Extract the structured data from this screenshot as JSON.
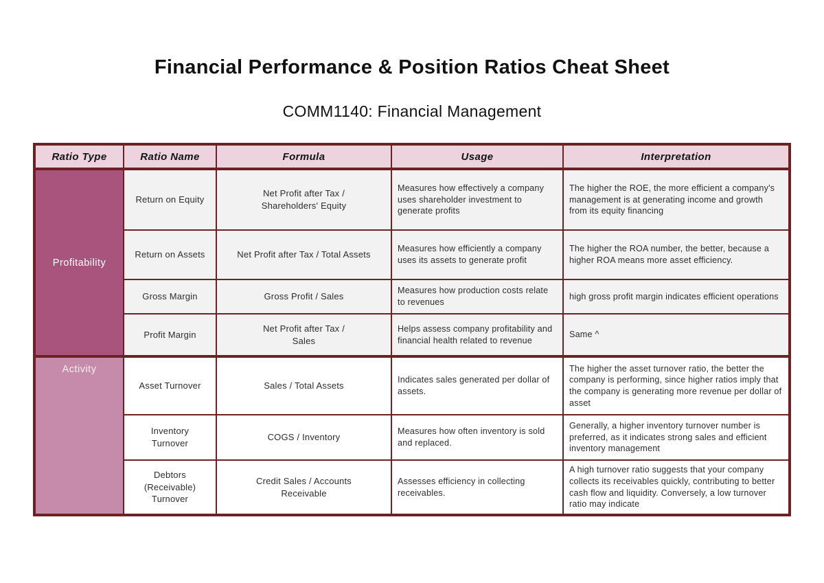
{
  "page": {
    "title": "Financial Performance & Position Ratios Cheat Sheet",
    "subtitle": "COMM1140: Financial Management"
  },
  "table": {
    "columns": [
      "Ratio Type",
      "Ratio Name",
      "Formula",
      "Usage",
      "Interpretation"
    ],
    "groups": [
      {
        "type": "Profitability",
        "rows": [
          {
            "name": "Return on Equity",
            "formula": "Net Profit after Tax /\nShareholders' Equity",
            "usage": "Measures how effectively a company uses shareholder investment to generate profits",
            "interpretation": "The higher the ROE, the more efficient a company's management is at generating income and growth from its equity financing"
          },
          {
            "name": "Return on Assets",
            "formula": "Net Profit after Tax / Total Assets",
            "usage": "Measures how efficiently a company uses its assets to generate profit",
            "interpretation": "The higher the ROA number, the better, because a higher ROA means more asset efficiency."
          },
          {
            "name": "Gross Margin",
            "formula": "Gross Profit / Sales",
            "usage": "Measures how production costs relate to revenues",
            "interpretation": "high gross profit margin indicates efficient operations"
          },
          {
            "name": "Profit Margin",
            "formula": "Net Profit after Tax /\nSales",
            "usage": "Helps assess company profitability and financial health related to revenue",
            "interpretation": "Same ^"
          }
        ]
      },
      {
        "type": "Activity",
        "rows": [
          {
            "name": "Asset Turnover",
            "formula": "Sales / Total Assets",
            "usage": "Indicates sales generated per dollar of assets.",
            "interpretation": "The higher the asset turnover ratio, the better the company is performing, since higher ratios imply that the company is generating more revenue per dollar of asset"
          },
          {
            "name": "Inventory\nTurnover",
            "formula": "COGS / Inventory",
            "usage": "Measures how often inventory is sold and replaced.",
            "interpretation": "Generally, a higher inventory turnover number is preferred, as it indicates strong sales and efficient inventory management"
          },
          {
            "name": "Debtors\n(Receivable)\nTurnover",
            "formula": "Credit Sales / Accounts\nReceivable",
            "usage": "Assesses efficiency in collecting receivables.",
            "interpretation": "A high turnover ratio suggests that your company collects its receivables quickly, contributing to better cash flow and liquidity. Conversely, a low turnover ratio may indicate"
          }
        ]
      }
    ]
  },
  "colors": {
    "border": "#6e2123",
    "header_bg": "#ecd3de",
    "profitability_bg": "#a9547d",
    "activity_bg": "#c68aaa",
    "profitability_row_bg": "#f2f2f2",
    "activity_row_bg": "#ffffff",
    "group_label_text": "#ffffff",
    "body_text": "#2d2d2d"
  }
}
